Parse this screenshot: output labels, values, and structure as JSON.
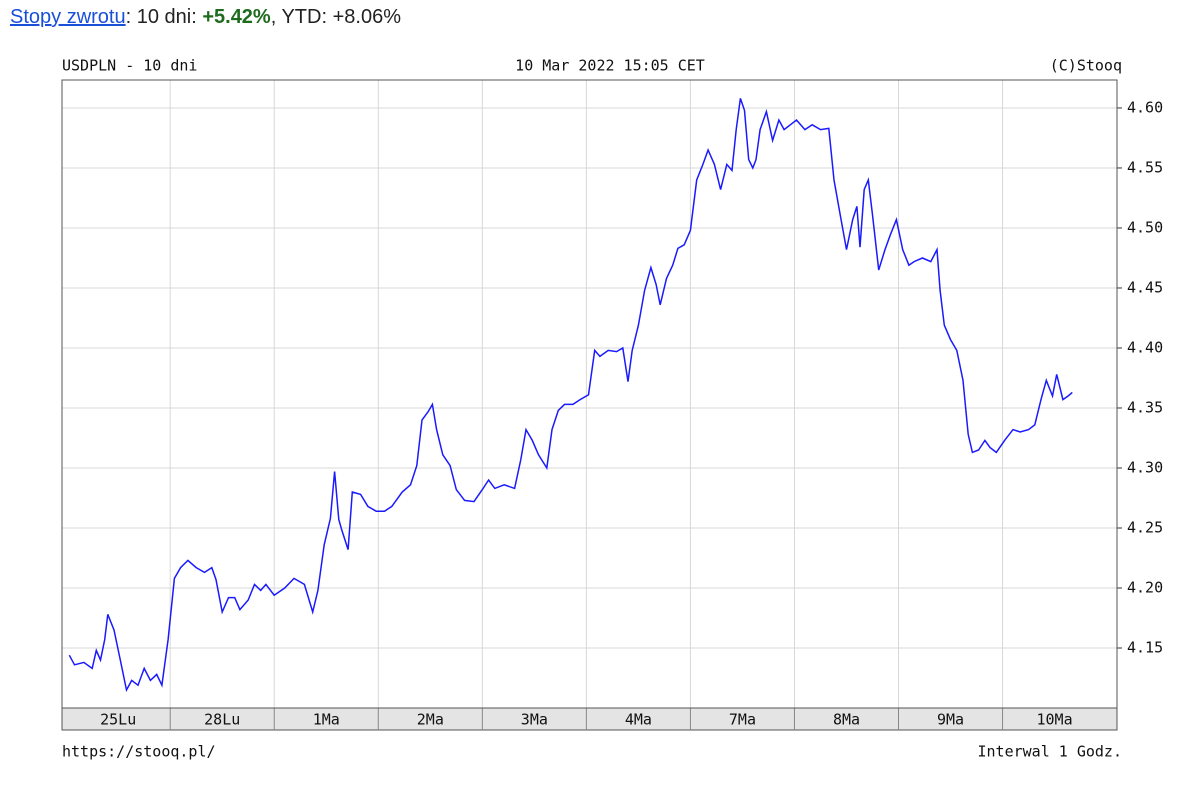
{
  "header": {
    "link": "Stopy zwrotu",
    "text": ": 10 dni: ",
    "return_10d": "+5.42%",
    "ytd": ", YTD: +8.06%"
  },
  "chart_data": {
    "type": "line",
    "title": "USDPLN - 10 dni",
    "timestamp": "10 Mar 2022 15:05 CET",
    "copyright": "(C)Stooq",
    "source": "https://stooq.pl/",
    "interval": "Interwal 1 Godz.",
    "xlim": [
      -0.04,
      10.1
    ],
    "xticks": [
      {
        "value": 0.5,
        "label": "25Lu"
      },
      {
        "value": 1.5,
        "label": "28Lu"
      },
      {
        "value": 2.5,
        "label": "1Ma"
      },
      {
        "value": 3.5,
        "label": "2Ma"
      },
      {
        "value": 4.5,
        "label": "3Ma"
      },
      {
        "value": 5.5,
        "label": "4Ma"
      },
      {
        "value": 6.5,
        "label": "7Ma"
      },
      {
        "value": 7.5,
        "label": "8Ma"
      },
      {
        "value": 8.5,
        "label": "9Ma"
      },
      {
        "value": 9.5,
        "label": "10Ma"
      }
    ],
    "ylim": [
      4.1,
      4.6233
    ],
    "yticks": [
      {
        "value": 4.15,
        "label": "4.15"
      },
      {
        "value": 4.2,
        "label": "4.20"
      },
      {
        "value": 4.25,
        "label": "4.25"
      },
      {
        "value": 4.3,
        "label": "4.30"
      },
      {
        "value": 4.35,
        "label": "4.35"
      },
      {
        "value": 4.4,
        "label": "4.40"
      },
      {
        "value": 4.45,
        "label": "4.45"
      },
      {
        "value": 4.5,
        "label": "4.50"
      },
      {
        "value": 4.55,
        "label": "4.55"
      },
      {
        "value": 4.6,
        "label": "4.60"
      }
    ],
    "grid": true,
    "y_axis_side": "right",
    "x": [
      0.03,
      0.08,
      0.17,
      0.25,
      0.29,
      0.33,
      0.37,
      0.4,
      0.46,
      0.52,
      0.58,
      0.63,
      0.69,
      0.75,
      0.81,
      0.87,
      0.92,
      0.98,
      1.04,
      1.1,
      1.17,
      1.25,
      1.33,
      1.4,
      1.44,
      1.5,
      1.56,
      1.62,
      1.67,
      1.75,
      1.81,
      1.87,
      1.92,
      2.0,
      2.1,
      2.19,
      2.29,
      2.37,
      2.42,
      2.48,
      2.54,
      2.58,
      2.62,
      2.65,
      2.71,
      2.75,
      2.83,
      2.9,
      2.98,
      3.06,
      3.13,
      3.23,
      3.31,
      3.37,
      3.42,
      3.48,
      3.52,
      3.56,
      3.62,
      3.69,
      3.75,
      3.83,
      3.92,
      4.0,
      4.06,
      4.12,
      4.21,
      4.31,
      4.37,
      4.42,
      4.48,
      4.54,
      4.62,
      4.67,
      4.73,
      4.79,
      4.87,
      4.94,
      5.02,
      5.08,
      5.13,
      5.21,
      5.29,
      5.35,
      5.4,
      5.44,
      5.5,
      5.56,
      5.62,
      5.67,
      5.71,
      5.77,
      5.83,
      5.88,
      5.94,
      6.0,
      6.06,
      6.12,
      6.17,
      6.23,
      6.29,
      6.35,
      6.4,
      6.44,
      6.48,
      6.52,
      6.56,
      6.6,
      6.63,
      6.67,
      6.73,
      6.79,
      6.85,
      6.9,
      6.96,
      7.02,
      7.1,
      7.17,
      7.25,
      7.33,
      7.38,
      7.44,
      7.5,
      7.56,
      7.6,
      7.63,
      7.67,
      7.71,
      7.75,
      7.81,
      7.87,
      7.92,
      7.98,
      8.04,
      8.1,
      8.15,
      8.23,
      8.31,
      8.37,
      8.4,
      8.44,
      8.5,
      8.56,
      8.62,
      8.67,
      8.71,
      8.77,
      8.83,
      8.88,
      8.94,
      9.02,
      9.1,
      9.17,
      9.25,
      9.31,
      9.37,
      9.42,
      9.48,
      9.52,
      9.58,
      9.63,
      9.67
    ],
    "series": [
      {
        "name": "USDPLN",
        "color": "#1a1aff",
        "values": [
          4.144,
          4.136,
          4.138,
          4.133,
          4.148,
          4.14,
          4.157,
          4.178,
          4.165,
          4.14,
          4.115,
          4.123,
          4.119,
          4.133,
          4.123,
          4.128,
          4.119,
          4.157,
          4.208,
          4.217,
          4.223,
          4.217,
          4.213,
          4.217,
          4.207,
          4.18,
          4.192,
          4.192,
          4.182,
          4.19,
          4.203,
          4.198,
          4.203,
          4.194,
          4.2,
          4.208,
          4.203,
          4.18,
          4.198,
          4.236,
          4.258,
          4.297,
          4.257,
          4.248,
          4.232,
          4.28,
          4.278,
          4.268,
          4.264,
          4.264,
          4.268,
          4.28,
          4.286,
          4.302,
          4.34,
          4.347,
          4.353,
          4.332,
          4.311,
          4.302,
          4.282,
          4.273,
          4.272,
          4.282,
          4.29,
          4.283,
          4.286,
          4.283,
          4.307,
          4.332,
          4.323,
          4.311,
          4.3,
          4.332,
          4.348,
          4.353,
          4.353,
          4.357,
          4.361,
          4.398,
          4.393,
          4.398,
          4.397,
          4.4,
          4.372,
          4.398,
          4.419,
          4.448,
          4.467,
          4.453,
          4.436,
          4.458,
          4.469,
          4.483,
          4.486,
          4.498,
          4.54,
          4.553,
          4.565,
          4.553,
          4.532,
          4.553,
          4.548,
          4.582,
          4.608,
          4.598,
          4.557,
          4.55,
          4.557,
          4.582,
          4.597,
          4.573,
          4.59,
          4.582,
          4.586,
          4.59,
          4.582,
          4.586,
          4.582,
          4.583,
          4.54,
          4.511,
          4.482,
          4.507,
          4.518,
          4.484,
          4.532,
          4.54,
          4.511,
          4.465,
          4.482,
          4.494,
          4.507,
          4.482,
          4.469,
          4.472,
          4.475,
          4.472,
          4.482,
          4.448,
          4.419,
          4.407,
          4.398,
          4.373,
          4.328,
          4.313,
          4.315,
          4.323,
          4.317,
          4.313,
          4.323,
          4.332,
          4.33,
          4.332,
          4.336,
          4.357,
          4.373,
          4.36,
          4.378,
          4.357,
          4.36,
          4.363
        ]
      }
    ]
  }
}
